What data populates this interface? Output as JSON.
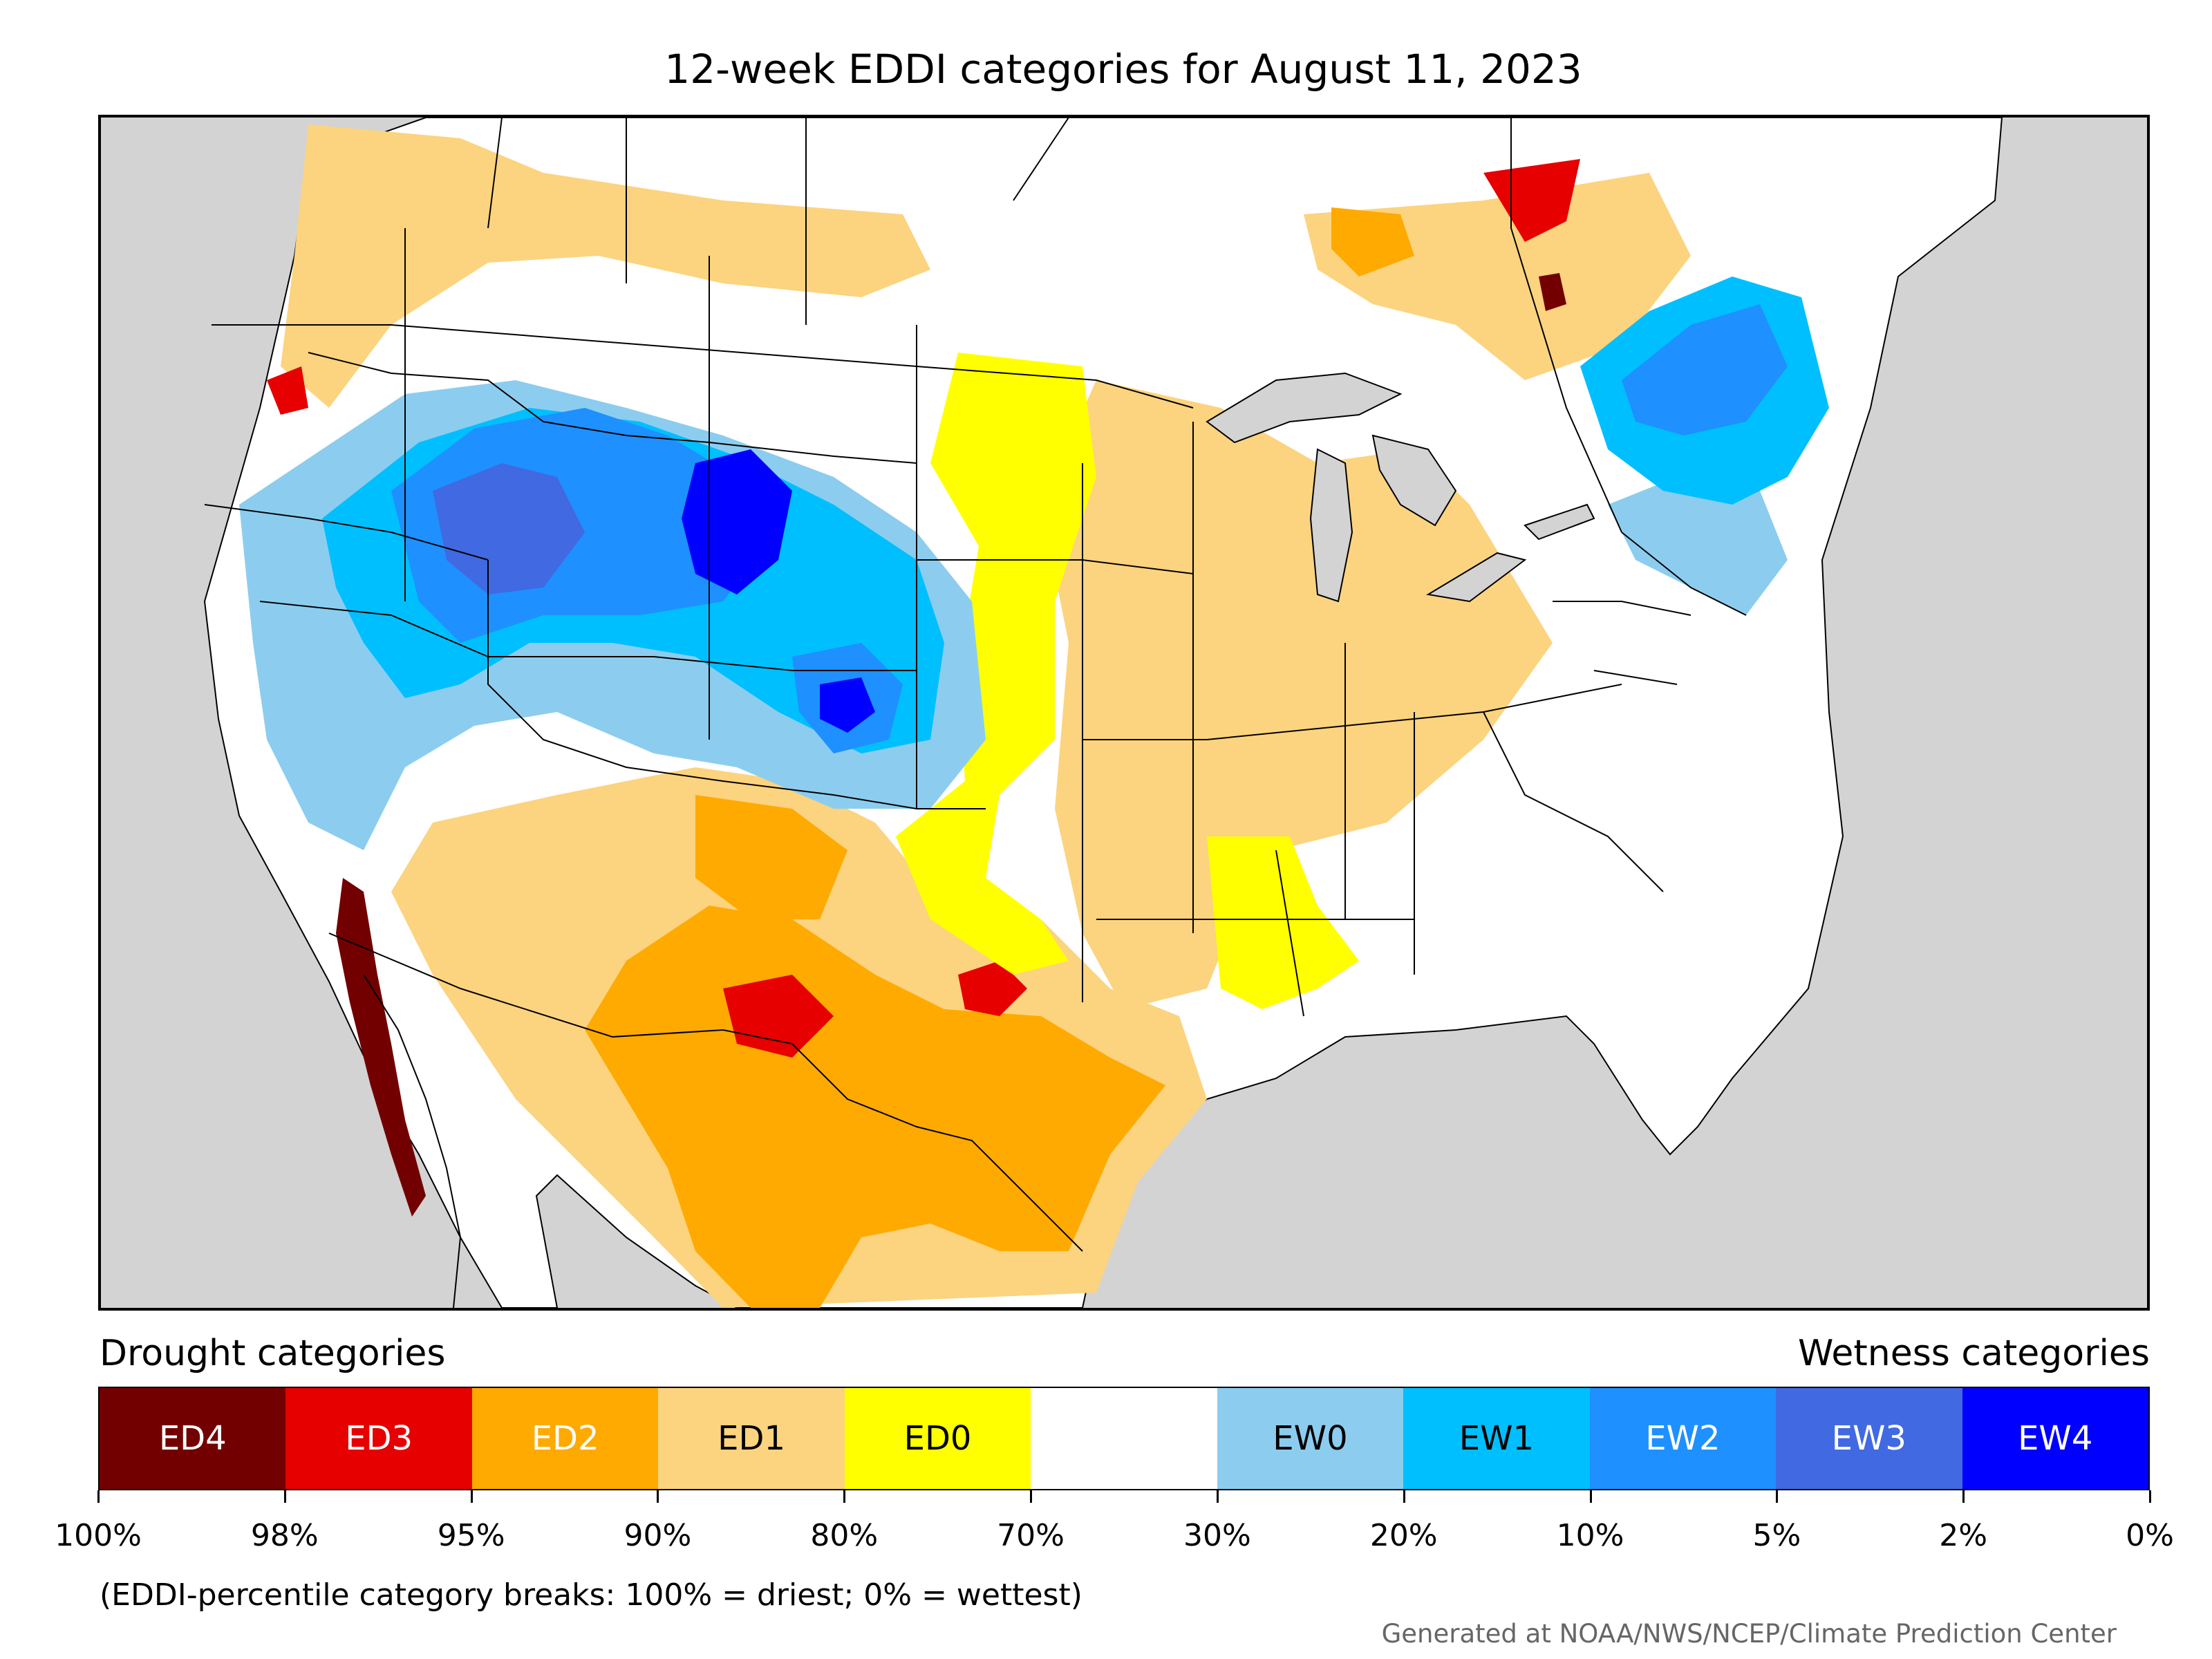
{
  "title": "12-week EDDI categories for August 11, 2023",
  "legend": {
    "drought_heading": "Drought categories",
    "wetness_heading": "Wetness categories",
    "categories": [
      {
        "label": "ED4",
        "color": "#730000",
        "text_color": "#ffffff"
      },
      {
        "label": "ED3",
        "color": "#e60000",
        "text_color": "#ffffff"
      },
      {
        "label": "ED2",
        "color": "#ffaa00",
        "text_color": "#ffffff"
      },
      {
        "label": "ED1",
        "color": "#fcd37f",
        "text_color": "#000000"
      },
      {
        "label": "ED0",
        "color": "#ffff00",
        "text_color": "#000000"
      },
      {
        "label": "",
        "color": "#ffffff",
        "text_color": "#000000"
      },
      {
        "label": "EW0",
        "color": "#8ccdef",
        "text_color": "#000000"
      },
      {
        "label": "EW1",
        "color": "#00bfff",
        "text_color": "#000000"
      },
      {
        "label": "EW2",
        "color": "#1e90ff",
        "text_color": "#ffffff"
      },
      {
        "label": "EW3",
        "color": "#4169e1",
        "text_color": "#ffffff"
      },
      {
        "label": "EW4",
        "color": "#0000ff",
        "text_color": "#ffffff"
      }
    ],
    "breaks": [
      "100%",
      "98%",
      "95%",
      "90%",
      "80%",
      "70%",
      "30%",
      "20%",
      "10%",
      "5%",
      "2%",
      "0%"
    ]
  },
  "footnote": "(EDDI-percentile category breaks: 100% = driest; 0% = wettest)",
  "credit": "Generated at NOAA/NWS/NCEP/Climate Prediction Center",
  "map": {
    "ocean_color": "#d3d3d3",
    "regions": [
      {
        "name": "pacific-northwest",
        "category": "ED1"
      },
      {
        "name": "northern-rockies",
        "category": "EW2"
      },
      {
        "name": "wyoming-core",
        "category": "EW4"
      },
      {
        "name": "colorado-east",
        "category": "EW2"
      },
      {
        "name": "southwest",
        "category": "ED1"
      },
      {
        "name": "texas",
        "category": "ED2"
      },
      {
        "name": "new-mexico",
        "category": "ED3"
      },
      {
        "name": "midwest",
        "category": "ED1"
      },
      {
        "name": "northeast",
        "category": "EW1"
      },
      {
        "name": "southeast",
        "category": "none"
      },
      {
        "name": "baja",
        "category": "ED4"
      }
    ]
  }
}
